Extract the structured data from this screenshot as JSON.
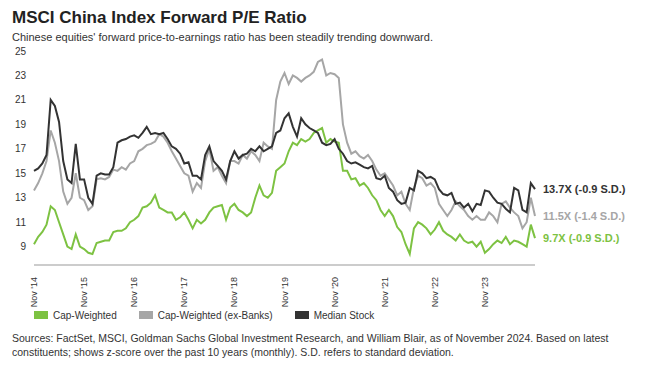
{
  "chart_data": {
    "type": "line",
    "title": "MSCI China Index Forward P/E Ratio",
    "subtitle": "Chinese equities' forward price-to-earnings ratio has been steadily trending downward.",
    "source": "Sources: FactSet, MSCI, Goldman Sachs Global Investment Research, and William Blair, as of November 2024. Based on latest constituents; shows z-score over the past 10 years (monthly). S.D. refers to standard deviation.",
    "legend": "bottom",
    "grid": false,
    "ylim": [
      7.5,
      25
    ],
    "yticks": [
      9,
      11,
      13,
      15,
      17,
      19,
      21,
      23,
      25
    ],
    "categories": [
      "Nov '14",
      null,
      null,
      null,
      null,
      null,
      null,
      null,
      null,
      null,
      null,
      null,
      "Nov '15",
      null,
      null,
      null,
      null,
      null,
      null,
      null,
      null,
      null,
      null,
      null,
      "Nov '16",
      null,
      null,
      null,
      null,
      null,
      null,
      null,
      null,
      null,
      null,
      null,
      "Nov '17",
      null,
      null,
      null,
      null,
      null,
      null,
      null,
      null,
      null,
      null,
      null,
      "Nov '18",
      null,
      null,
      null,
      null,
      null,
      null,
      null,
      null,
      null,
      null,
      null,
      "Nov '19",
      null,
      null,
      null,
      null,
      null,
      null,
      null,
      null,
      null,
      null,
      null,
      "Nov '20",
      null,
      null,
      null,
      null,
      null,
      null,
      null,
      null,
      null,
      null,
      null,
      "Nov '21",
      null,
      null,
      null,
      null,
      null,
      null,
      null,
      null,
      null,
      null,
      null,
      "Nov '22",
      null,
      null,
      null,
      null,
      null,
      null,
      null,
      null,
      null,
      null,
      null,
      "Nov '23",
      null,
      null,
      null,
      null,
      null,
      null,
      null,
      null,
      null,
      null,
      null,
      null
    ],
    "series": [
      {
        "name": "Cap-Weighted",
        "color": "#7dc242",
        "end_label": "9.7X (-0.9 S.D.)",
        "values": [
          9.2,
          9.8,
          10.2,
          10.8,
          12.3,
          12.0,
          11.0,
          10.0,
          9.0,
          8.8,
          10.0,
          9.0,
          8.8,
          8.5,
          8.4,
          9.3,
          9.4,
          9.5,
          9.5,
          10.2,
          10.3,
          10.3,
          10.5,
          11.0,
          11.2,
          11.5,
          12.2,
          12.3,
          12.6,
          13.2,
          12.2,
          12.0,
          11.8,
          11.8,
          11.2,
          11.4,
          11.8,
          11.2,
          10.5,
          11.2,
          10.9,
          11.2,
          11.8,
          12.2,
          12.3,
          12.4,
          11.2,
          12.2,
          12.5,
          12.0,
          11.8,
          11.5,
          11.8,
          13.0,
          14.0,
          13.2,
          13.0,
          13.4,
          15.2,
          15.5,
          15.8,
          16.8,
          17.5,
          17.3,
          17.8,
          17.6,
          17.8,
          18.3,
          18.5,
          18.7,
          17.5,
          17.8,
          17.6,
          17.5,
          15.2,
          15.2,
          14.5,
          14.6,
          14.0,
          14.2,
          13.8,
          13.2,
          12.8,
          12.0,
          11.5,
          12.0,
          11.5,
          10.6,
          10.2,
          9.2,
          8.4,
          10.5,
          11.0,
          10.8,
          10.5,
          10.0,
          10.4,
          11.0,
          10.3,
          10.0,
          9.8,
          9.5,
          10.0,
          9.5,
          9.3,
          9.4,
          9.0,
          9.4,
          8.5,
          8.8,
          9.2,
          9.5,
          9.3,
          9.8,
          9.2,
          9.5,
          9.4,
          9.2,
          9.0,
          10.8,
          9.7
        ]
      },
      {
        "name": "Cap-Weighted (ex-Banks)",
        "color": "#a6a6a6",
        "end_label": "11.5X (-1.4 S.D.)",
        "values": [
          13.6,
          14.2,
          15.0,
          16.0,
          18.5,
          17.5,
          16.0,
          13.5,
          12.5,
          13.0,
          15.0,
          13.0,
          12.8,
          12.0,
          12.3,
          14.5,
          14.6,
          14.5,
          14.7,
          15.3,
          15.2,
          15.5,
          15.3,
          15.8,
          16.0,
          16.8,
          17.0,
          17.3,
          17.4,
          17.6,
          18.2,
          18.0,
          17.5,
          16.8,
          16.2,
          15.6,
          15.0,
          14.8,
          13.5,
          14.2,
          13.8,
          16.0,
          17.0,
          15.2,
          15.5,
          14.8,
          14.2,
          16.0,
          16.0,
          15.8,
          16.5,
          16.2,
          16.8,
          16.5,
          16.0,
          17.5,
          17.2,
          17.0,
          21.0,
          22.5,
          23.2,
          22.3,
          23.0,
          22.8,
          22.5,
          22.8,
          23.0,
          23.3,
          24.1,
          24.3,
          23.0,
          23.2,
          23.1,
          22.8,
          19.0,
          17.5,
          16.6,
          16.8,
          16.4,
          16.2,
          16.5,
          16.0,
          15.3,
          14.8,
          15.0,
          14.5,
          14.0,
          13.2,
          13.5,
          12.5,
          12.0,
          13.8,
          14.8,
          14.6,
          14.0,
          14.2,
          13.8,
          12.5,
          12.0,
          11.5,
          12.0,
          12.7,
          12.3,
          12.0,
          11.5,
          11.2,
          11.5,
          11.2,
          11.2,
          11.8,
          11.5,
          11.0,
          12.5,
          12.7,
          12.2,
          11.8,
          11.5,
          10.5,
          11.0,
          13.0,
          11.5
        ]
      },
      {
        "name": "Median Stock",
        "color": "#333333",
        "end_label": "13.7X (-0.9 S.D.)",
        "values": [
          15.2,
          15.4,
          15.8,
          16.5,
          21.0,
          20.5,
          19.2,
          16.0,
          14.5,
          14.2,
          17.4,
          14.5,
          14.5,
          13.0,
          12.5,
          14.8,
          15.0,
          14.9,
          14.9,
          15.5,
          17.5,
          17.7,
          17.8,
          18.0,
          18.1,
          17.9,
          18.3,
          18.8,
          18.2,
          18.3,
          18.2,
          18.3,
          17.8,
          17.2,
          17.0,
          16.6,
          15.8,
          15.9,
          14.8,
          14.8,
          14.5,
          16.5,
          17.2,
          16.0,
          15.6,
          15.2,
          14.5,
          16.0,
          16.8,
          16.2,
          16.5,
          16.6,
          17.0,
          16.8,
          17.2,
          16.8,
          17.0,
          17.2,
          18.3,
          18.5,
          19.5,
          19.9,
          18.8,
          18.0,
          19.5,
          19.0,
          18.7,
          18.5,
          18.3,
          17.5,
          17.3,
          17.4,
          17.8,
          17.0,
          16.6,
          16.0,
          15.8,
          15.9,
          15.7,
          15.5,
          15.4,
          15.6,
          14.6,
          14.5,
          14.8,
          13.8,
          13.5,
          12.8,
          12.5,
          12.6,
          13.8,
          13.6,
          15.2,
          15.0,
          14.6,
          14.7,
          14.5,
          13.7,
          13.3,
          13.2,
          13.4,
          12.5,
          12.6,
          12.2,
          12.5,
          11.9,
          12.5,
          12.4,
          13.6,
          13.5,
          13.0,
          12.6,
          12.5,
          12.1,
          11.8,
          13.8,
          13.6,
          12.0,
          11.8,
          14.2,
          13.7
        ]
      }
    ]
  }
}
